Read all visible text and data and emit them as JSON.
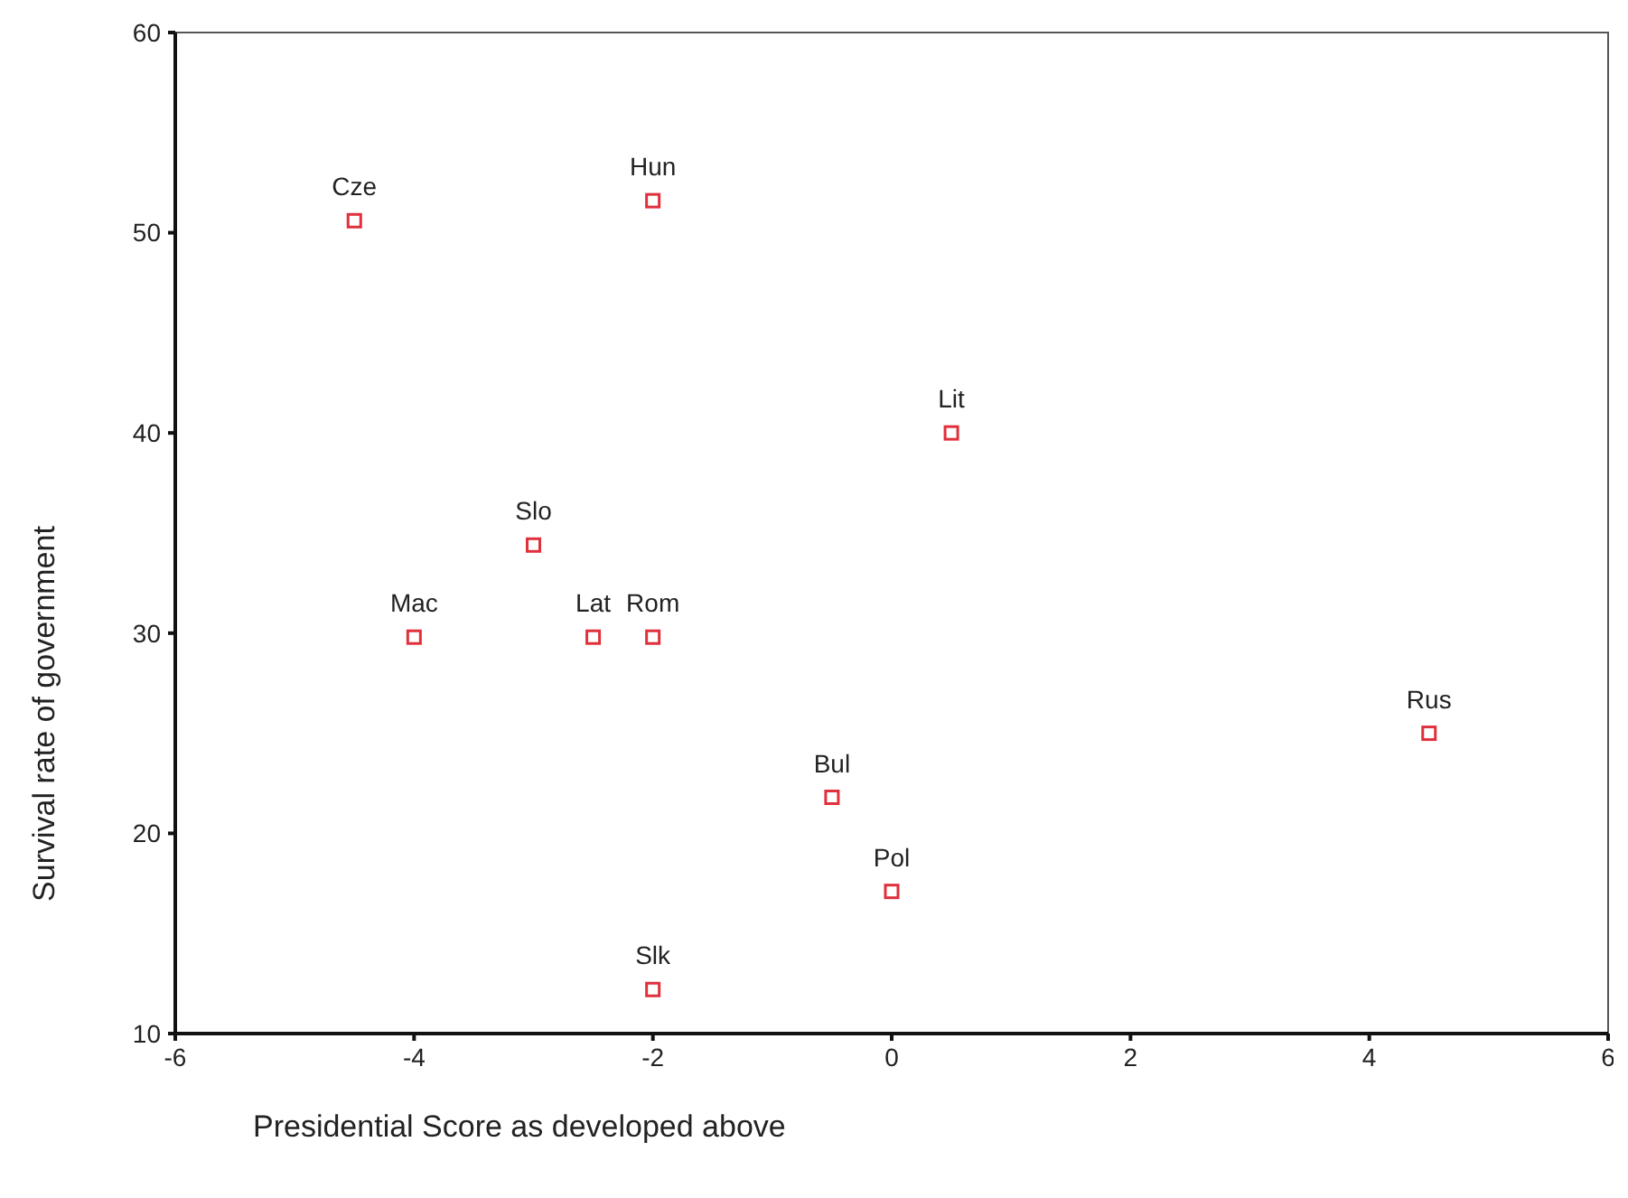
{
  "chart_data": {
    "type": "scatter",
    "xlabel": "Presidential Score as developed above",
    "ylabel": "Survival rate of government",
    "xlim": [
      -6,
      6
    ],
    "xticks": [
      -6,
      -4,
      -2,
      0,
      2,
      4,
      6
    ],
    "ylim": [
      10,
      60
    ],
    "yticks": [
      10,
      20,
      30,
      40,
      50,
      60
    ],
    "grid": false,
    "marker": "square",
    "series": [
      {
        "color": "#e0303c",
        "x": [
          -4.5,
          -2,
          0.5,
          -3,
          -4,
          -2.5,
          -2,
          4.5,
          -0.5,
          0,
          -2
        ],
        "values": [
          50.6,
          51.6,
          40,
          34.4,
          29.8,
          29.8,
          29.8,
          25,
          21.8,
          17.1,
          12.2
        ]
      }
    ],
    "annotations": [
      {
        "text": "Cze",
        "x": -4.5,
        "y": 50.6
      },
      {
        "text": "Hun",
        "x": -2,
        "y": 51.6
      },
      {
        "text": "Lit",
        "x": 0.5,
        "y": 40
      },
      {
        "text": "Slo",
        "x": -3,
        "y": 34.4
      },
      {
        "text": "Mac",
        "x": -4,
        "y": 29.8
      },
      {
        "text": "Lat",
        "x": -2.5,
        "y": 29.8
      },
      {
        "text": "Rom",
        "x": -2,
        "y": 29.8
      },
      {
        "text": "Rus",
        "x": 4.5,
        "y": 25
      },
      {
        "text": "Bul",
        "x": -0.5,
        "y": 21.8
      },
      {
        "text": "Pol",
        "x": 0,
        "y": 17.1
      },
      {
        "text": "Slk",
        "x": -2,
        "y": 12.2
      }
    ]
  }
}
